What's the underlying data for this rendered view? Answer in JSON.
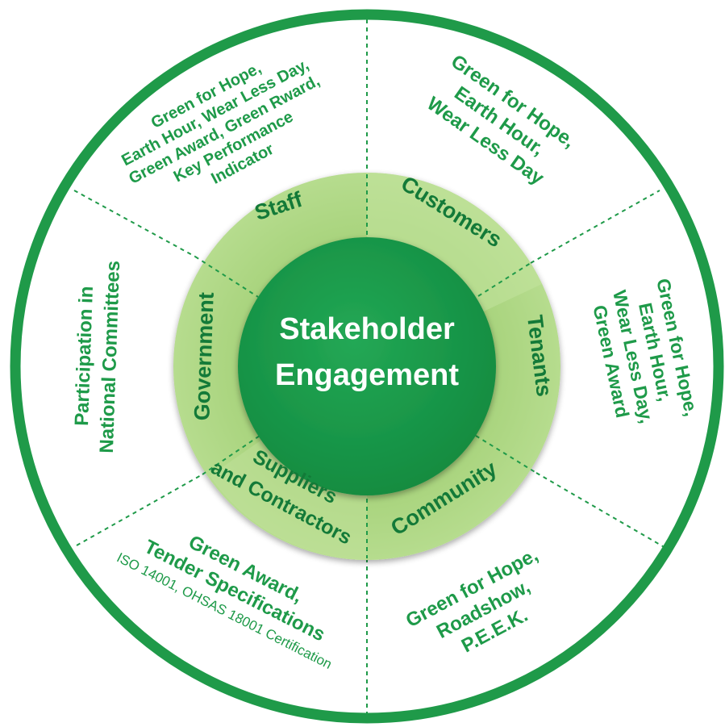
{
  "center": {
    "line1": "Stakeholder",
    "line2": "Engagement"
  },
  "colors": {
    "outer_ring": "#1f9a49",
    "outer_fill": "#ffffff",
    "middle_ring": "#a9d47e",
    "middle_light": "#c7e6a2",
    "center": "#19994a",
    "text_dark_green": "#1e9a49"
  },
  "stakeholders": {
    "staff": "Staff",
    "customers": "Customers",
    "tenants": "Tenants",
    "community": "Community",
    "suppliers_line1": "Suppliers",
    "suppliers_line2": "and Contractors",
    "government": "Government"
  },
  "activities": {
    "staff": [
      "Green for Hope,",
      "Earth Hour, Wear Less Day,",
      "Green Award, Green Rward,",
      "Key Performance",
      "Indicator"
    ],
    "customers": [
      "Green for Hope,",
      "Earth Hour,",
      "Wear Less Day"
    ],
    "tenants": [
      "Green for Hope,",
      "Earth Hour,",
      "Wear Less Day,",
      "Green Award"
    ],
    "community": [
      "Green for Hope,",
      "Roadshow,",
      "P.E.E.K."
    ],
    "suppliers": [
      "Green Award,",
      "Tender Specifications"
    ],
    "suppliers_note": "ISO 14001, OHSAS 18001 Certification",
    "government": [
      "Participation in",
      "National Committees"
    ]
  }
}
